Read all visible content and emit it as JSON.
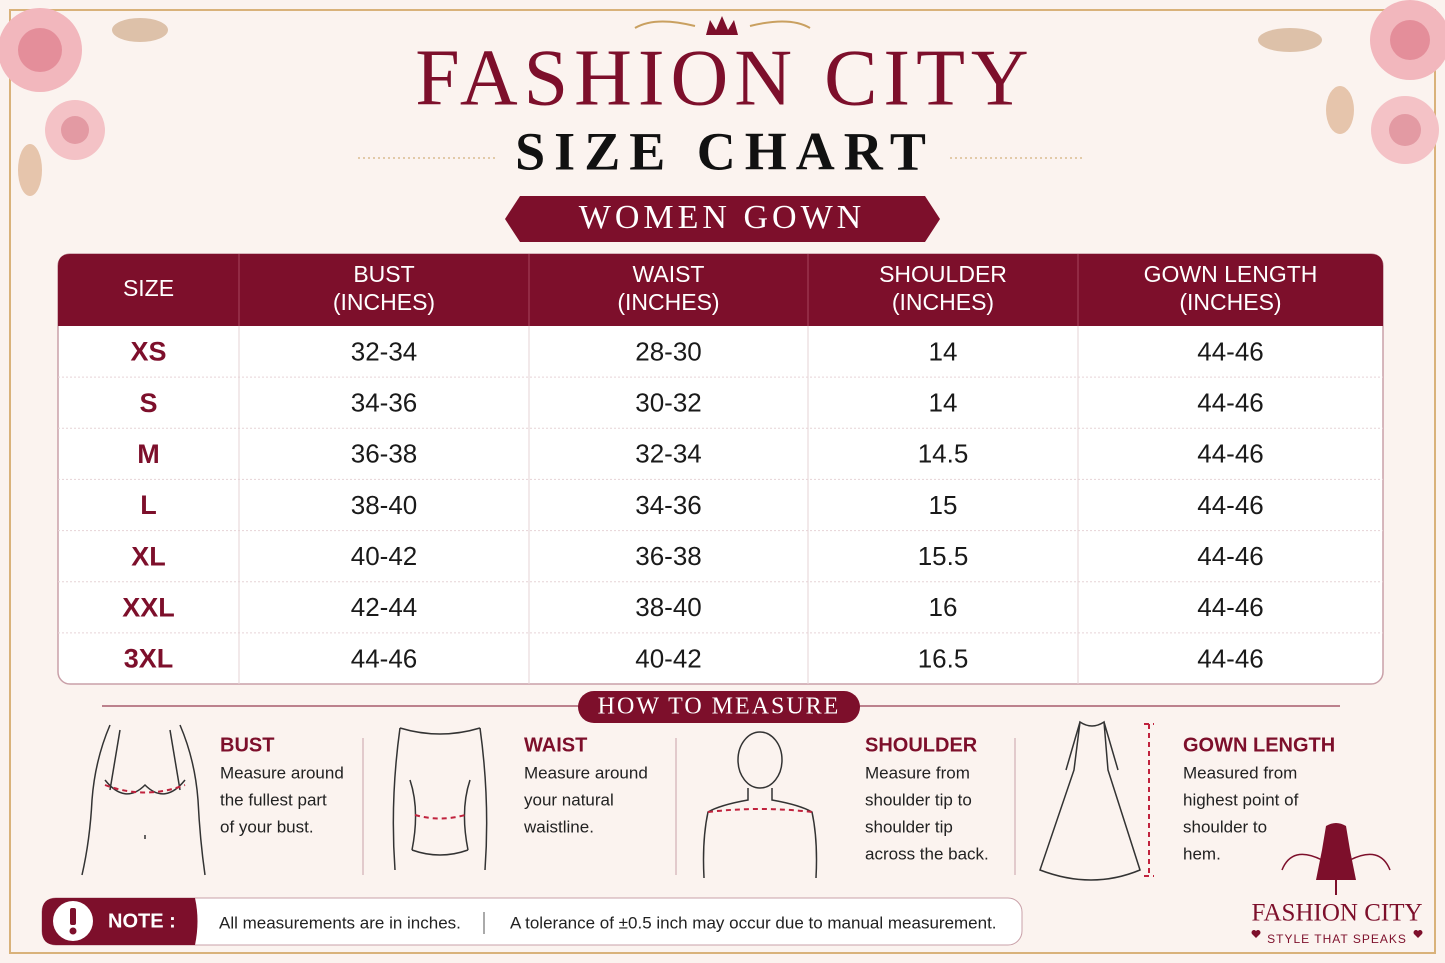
{
  "header": {
    "brand": "FASHION CITY",
    "title": "SIZE CHART",
    "subtitle": "WOMEN GOWN"
  },
  "table": {
    "headers": [
      [
        "SIZE"
      ],
      [
        "BUST",
        "(INCHES)"
      ],
      [
        "WAIST",
        "(INCHES)"
      ],
      [
        "SHOULDER",
        "(INCHES)"
      ],
      [
        "GOWN LENGTH",
        "(INCHES)"
      ]
    ],
    "rows": [
      [
        "XS",
        "32-34",
        "28-30",
        "14",
        "44-46"
      ],
      [
        "S",
        "34-36",
        "30-32",
        "14",
        "44-46"
      ],
      [
        "M",
        "36-38",
        "32-34",
        "14.5",
        "44-46"
      ],
      [
        "L",
        "38-40",
        "34-36",
        "15",
        "44-46"
      ],
      [
        "XL",
        "40-42",
        "36-38",
        "15.5",
        "44-46"
      ],
      [
        "XXL",
        "42-44",
        "38-40",
        "16",
        "44-46"
      ],
      [
        "3XL",
        "44-46",
        "40-42",
        "16.5",
        "44-46"
      ]
    ]
  },
  "measure": {
    "title": "HOW TO MEASURE",
    "items": [
      {
        "title": "BUST",
        "lines": [
          "Measure around",
          "the fullest part",
          "of your bust."
        ]
      },
      {
        "title": "WAIST",
        "lines": [
          "Measure around",
          "your natural",
          "waistline."
        ]
      },
      {
        "title": "SHOULDER",
        "lines": [
          "Measure from",
          "shoulder tip to",
          "shoulder tip",
          "across the back."
        ]
      },
      {
        "title": "GOWN LENGTH",
        "lines": [
          "Measured from",
          "highest point of",
          "shoulder to",
          "hem."
        ]
      }
    ]
  },
  "note": {
    "label": "NOTE :",
    "texts": [
      "All measurements are in inches.",
      "A tolerance of ±0.5 inch may occur due to manual measurement."
    ]
  },
  "logo": {
    "name": "FASHION CITY",
    "tagline": "STYLE THAT SPEAKS"
  }
}
